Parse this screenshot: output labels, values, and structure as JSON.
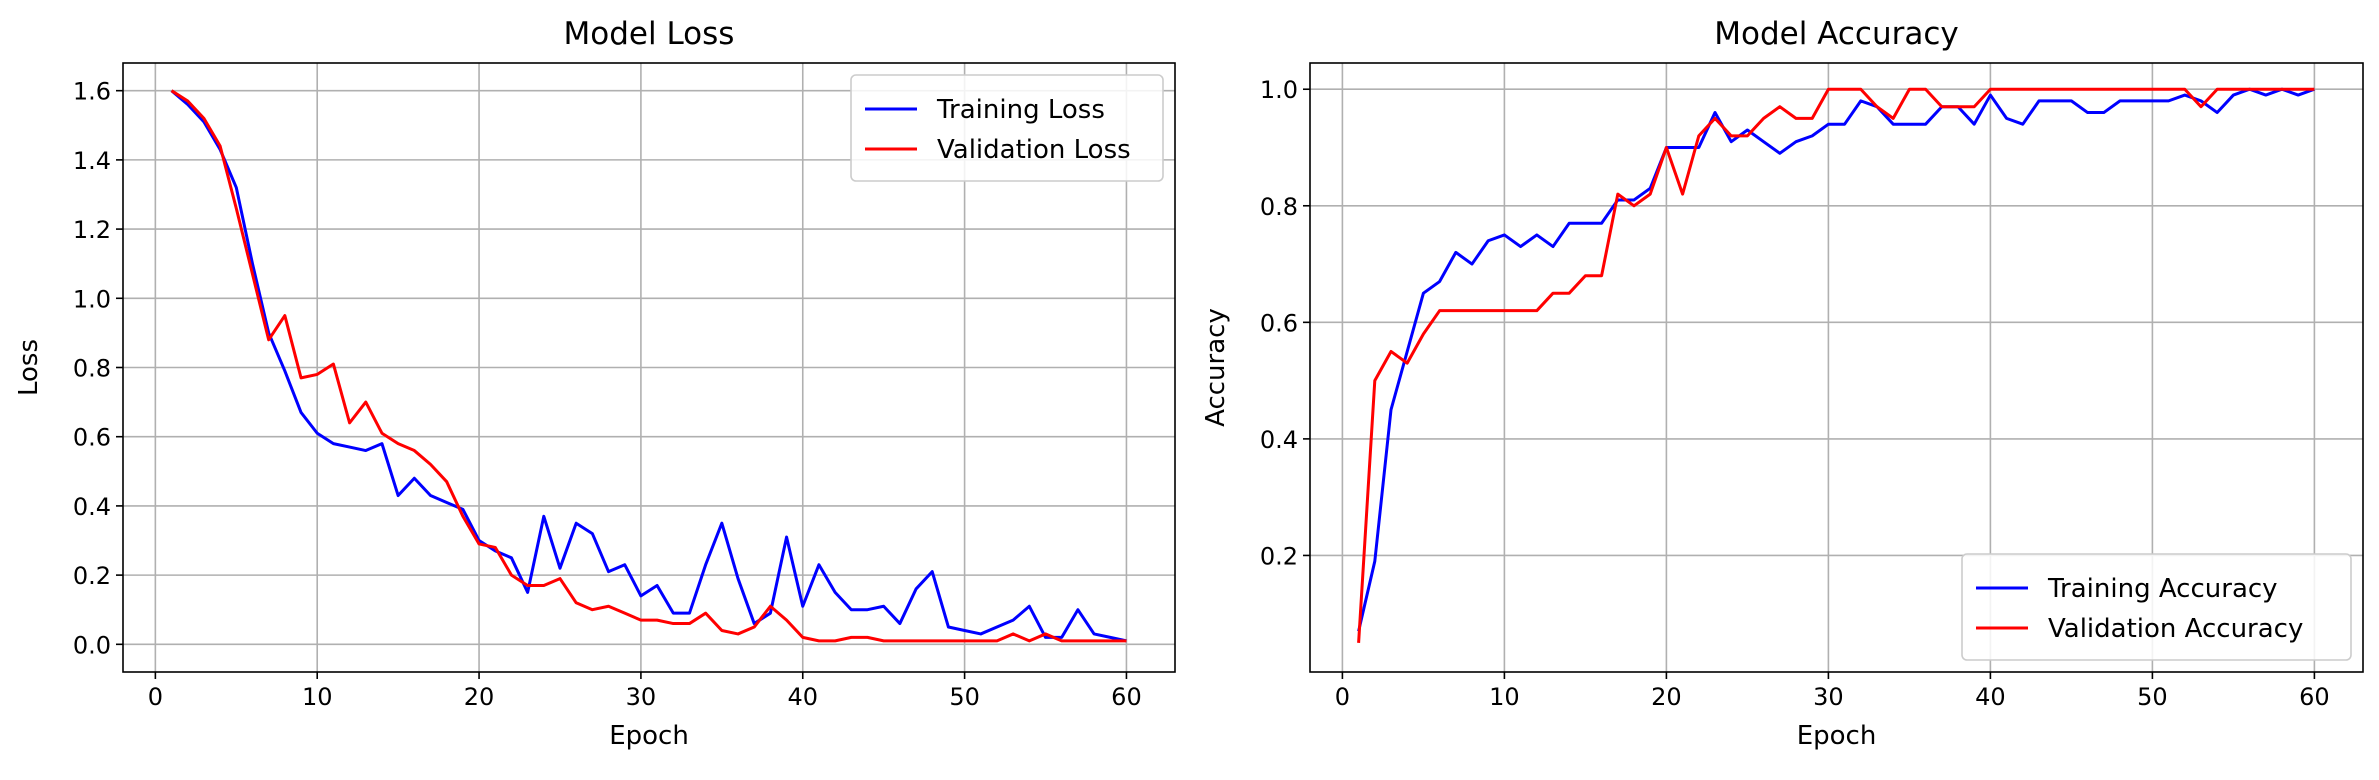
{
  "chart_data": [
    {
      "type": "line",
      "title": "Model Loss",
      "xlabel": "Epoch",
      "ylabel": "Loss",
      "xlim": [
        -2,
        63
      ],
      "ylim": [
        -0.08,
        1.68
      ],
      "xticks": [
        0,
        10,
        20,
        30,
        40,
        50,
        60
      ],
      "yticks": [
        0.0,
        0.2,
        0.4,
        0.6,
        0.8,
        1.0,
        1.2,
        1.4,
        1.6
      ],
      "ytick_format": 1,
      "grid": true,
      "legend_position": "top-right",
      "x": [
        1,
        2,
        3,
        4,
        5,
        6,
        7,
        8,
        9,
        10,
        11,
        12,
        13,
        14,
        15,
        16,
        17,
        18,
        19,
        20,
        21,
        22,
        23,
        24,
        25,
        26,
        27,
        28,
        29,
        30,
        31,
        32,
        33,
        34,
        35,
        36,
        37,
        38,
        39,
        40,
        41,
        42,
        43,
        44,
        45,
        46,
        47,
        48,
        49,
        50,
        51,
        52,
        53,
        54,
        55,
        56,
        57,
        58,
        59,
        60
      ],
      "series": [
        {
          "name": "Training Loss",
          "color": "#0000ff",
          "values": [
            1.6,
            1.56,
            1.51,
            1.43,
            1.32,
            1.1,
            0.9,
            0.79,
            0.67,
            0.61,
            0.58,
            0.57,
            0.56,
            0.58,
            0.43,
            0.48,
            0.43,
            0.41,
            0.39,
            0.3,
            0.27,
            0.25,
            0.15,
            0.37,
            0.22,
            0.35,
            0.32,
            0.21,
            0.23,
            0.14,
            0.17,
            0.09,
            0.09,
            0.23,
            0.35,
            0.19,
            0.06,
            0.09,
            0.31,
            0.11,
            0.23,
            0.15,
            0.1,
            0.1,
            0.11,
            0.06,
            0.16,
            0.21,
            0.05,
            0.04,
            0.03,
            0.05,
            0.07,
            0.11,
            0.02,
            0.02,
            0.1,
            0.03,
            0.02,
            0.01
          ]
        },
        {
          "name": "Validation Loss",
          "color": "#ff0000",
          "values": [
            1.6,
            1.57,
            1.52,
            1.44,
            1.26,
            1.07,
            0.88,
            0.95,
            0.77,
            0.78,
            0.81,
            0.64,
            0.7,
            0.61,
            0.58,
            0.56,
            0.52,
            0.47,
            0.37,
            0.29,
            0.28,
            0.2,
            0.17,
            0.17,
            0.19,
            0.12,
            0.1,
            0.11,
            0.09,
            0.07,
            0.07,
            0.06,
            0.06,
            0.09,
            0.04,
            0.03,
            0.05,
            0.11,
            0.07,
            0.02,
            0.01,
            0.01,
            0.02,
            0.02,
            0.01,
            0.01,
            0.01,
            0.01,
            0.01,
            0.01,
            0.01,
            0.01,
            0.03,
            0.01,
            0.03,
            0.01,
            0.01,
            0.01,
            0.01,
            0.01
          ]
        }
      ]
    },
    {
      "type": "line",
      "title": "Model Accuracy",
      "xlabel": "Epoch",
      "ylabel": "Accuracy",
      "xlim": [
        -2,
        63
      ],
      "ylim": [
        0.0,
        1.045
      ],
      "xticks": [
        0,
        10,
        20,
        30,
        40,
        50,
        60
      ],
      "yticks": [
        0.2,
        0.4,
        0.6,
        0.8,
        1.0
      ],
      "ytick_format": 1,
      "grid": true,
      "legend_position": "bottom-right",
      "x": [
        1,
        2,
        3,
        4,
        5,
        6,
        7,
        8,
        9,
        10,
        11,
        12,
        13,
        14,
        15,
        16,
        17,
        18,
        19,
        20,
        21,
        22,
        23,
        24,
        25,
        26,
        27,
        28,
        29,
        30,
        31,
        32,
        33,
        34,
        35,
        36,
        37,
        38,
        39,
        40,
        41,
        42,
        43,
        44,
        45,
        46,
        47,
        48,
        49,
        50,
        51,
        52,
        53,
        54,
        55,
        56,
        57,
        58,
        59,
        60
      ],
      "series": [
        {
          "name": "Training Accuracy",
          "color": "#0000ff",
          "values": [
            0.07,
            0.19,
            0.45,
            0.55,
            0.65,
            0.67,
            0.72,
            0.7,
            0.74,
            0.75,
            0.73,
            0.75,
            0.73,
            0.77,
            0.77,
            0.77,
            0.81,
            0.81,
            0.83,
            0.9,
            0.9,
            0.9,
            0.96,
            0.91,
            0.93,
            0.91,
            0.89,
            0.91,
            0.92,
            0.94,
            0.94,
            0.98,
            0.97,
            0.94,
            0.94,
            0.94,
            0.97,
            0.97,
            0.94,
            0.99,
            0.95,
            0.94,
            0.98,
            0.98,
            0.98,
            0.96,
            0.96,
            0.98,
            0.98,
            0.98,
            0.98,
            0.99,
            0.98,
            0.96,
            0.99,
            1.0,
            0.99,
            1.0,
            0.99,
            1.0
          ]
        },
        {
          "name": "Validation Accuracy",
          "color": "#ff0000",
          "values": [
            0.05,
            0.5,
            0.55,
            0.53,
            0.58,
            0.62,
            0.62,
            0.62,
            0.62,
            0.62,
            0.62,
            0.62,
            0.65,
            0.65,
            0.68,
            0.68,
            0.82,
            0.8,
            0.82,
            0.9,
            0.82,
            0.92,
            0.95,
            0.92,
            0.92,
            0.95,
            0.97,
            0.95,
            0.95,
            1.0,
            1.0,
            1.0,
            0.97,
            0.95,
            1.0,
            1.0,
            0.97,
            0.97,
            0.97,
            1.0,
            1.0,
            1.0,
            1.0,
            1.0,
            1.0,
            1.0,
            1.0,
            1.0,
            1.0,
            1.0,
            1.0,
            1.0,
            0.97,
            1.0,
            1.0,
            1.0,
            1.0,
            1.0,
            1.0,
            1.0
          ]
        }
      ]
    }
  ]
}
